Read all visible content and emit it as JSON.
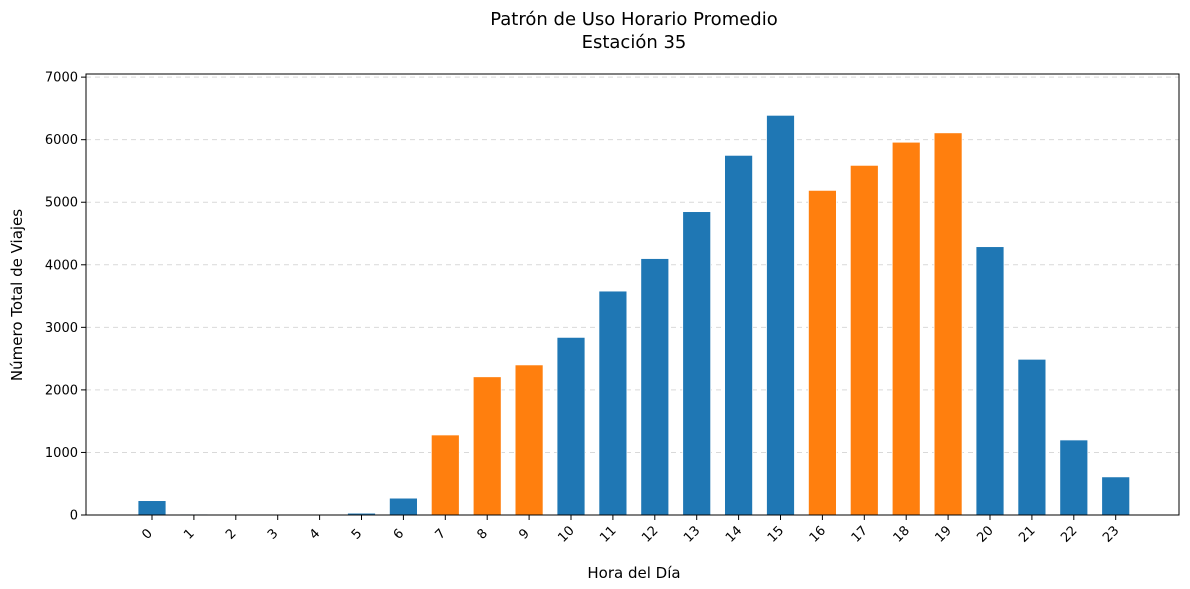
{
  "chart_data": {
    "type": "bar",
    "title": "Patrón de Uso Horario Promedio",
    "subtitle": "Estación 35",
    "xlabel": "Hora del Día",
    "ylabel": "Número Total de Viajes",
    "categories": [
      "0",
      "1",
      "2",
      "3",
      "4",
      "5",
      "6",
      "7",
      "8",
      "9",
      "10",
      "11",
      "12",
      "13",
      "14",
      "15",
      "16",
      "17",
      "18",
      "19",
      "20",
      "21",
      "22",
      "23"
    ],
    "values": [
      230,
      15,
      5,
      5,
      5,
      30,
      270,
      1280,
      2210,
      2400,
      2840,
      3580,
      4100,
      4850,
      5750,
      6390,
      5190,
      5590,
      5960,
      6110,
      4290,
      2490,
      1200,
      610
    ],
    "highlighted_categories": [
      "7",
      "8",
      "9",
      "16",
      "17",
      "18",
      "19"
    ],
    "ylim": [
      0,
      7050
    ],
    "yticks": [
      0,
      1000,
      2000,
      3000,
      4000,
      5000,
      6000,
      7000
    ],
    "grid": "y-dashed",
    "colors": {
      "base": "#1f77b4",
      "highlight": "#ff7f0e",
      "grid": "#d9d9d9"
    }
  }
}
